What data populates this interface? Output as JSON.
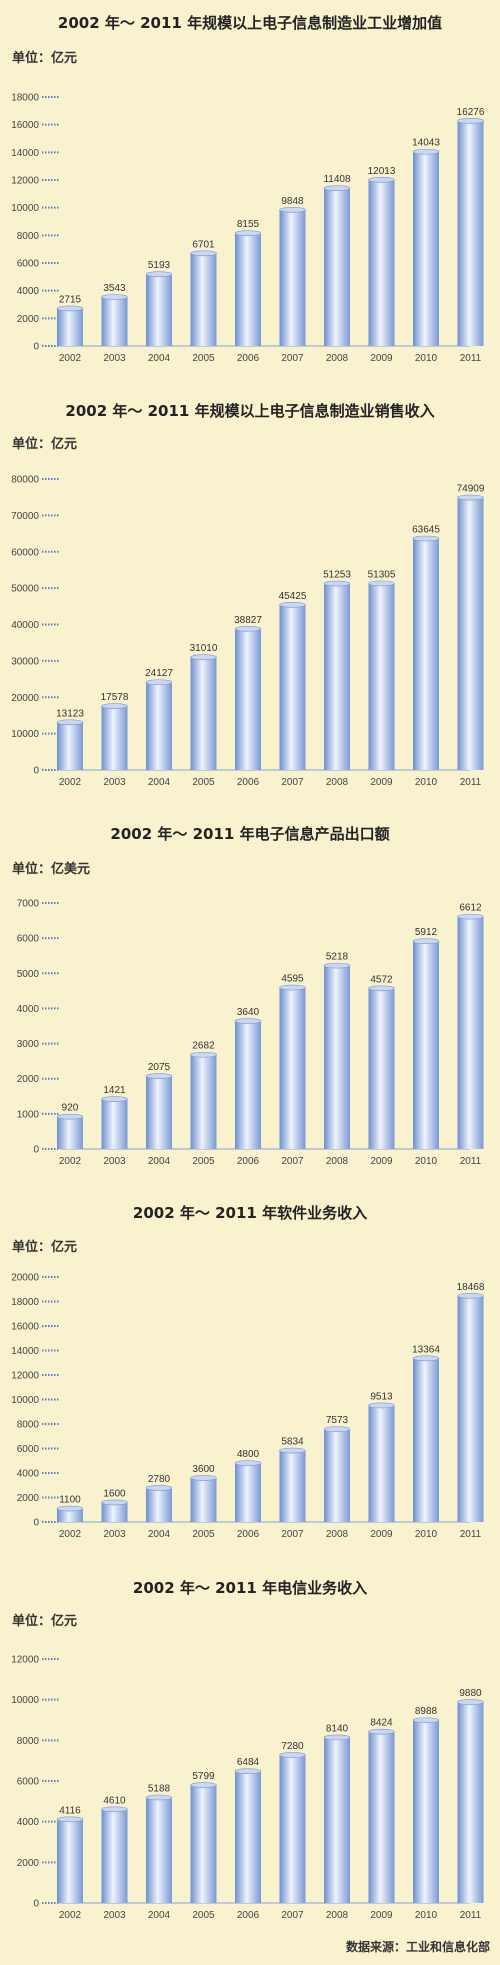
{
  "colors": {
    "background": "#f8f2cf",
    "bar_light": "#eef3fd",
    "bar_dark": "#6f8fcf",
    "dots": "#5a7fc4"
  },
  "source": "数据来源：工业和信息化部",
  "chart_data": [
    {
      "type": "bar",
      "title": "2002 年～ 2011 年规模以上电子信息制造业工业增加值",
      "unit": "单位：亿元",
      "categories": [
        "2002",
        "2003",
        "2004",
        "2005",
        "2006",
        "2007",
        "2008",
        "2009",
        "2010",
        "2011"
      ],
      "values": [
        2715,
        3543,
        5193,
        6701,
        8155,
        9848,
        11408,
        12013,
        14043,
        16276
      ],
      "value_labels": [
        "2715",
        "3543",
        "5193",
        "6701",
        "8155",
        "9848",
        "11408",
        "12013",
        "14043",
        "16276"
      ],
      "ylim": [
        0,
        18000
      ],
      "yticks": [
        0,
        2000,
        4000,
        6000,
        8000,
        10000,
        12000,
        14000,
        16000,
        18000
      ]
    },
    {
      "type": "bar",
      "title": "2002 年～ 2011 年规模以上电子信息制造业销售收入",
      "unit": "单位：亿元",
      "categories": [
        "2002",
        "2003",
        "2004",
        "2005",
        "2006",
        "2007",
        "2008",
        "2009",
        "2010",
        "2011"
      ],
      "values": [
        13123,
        17578,
        24127,
        31010,
        38827,
        45425,
        51253,
        51305,
        63645,
        74909
      ],
      "value_labels": [
        "13123",
        "17578",
        "24127",
        "31010",
        "38827",
        "45425",
        "51253",
        "51305",
        "63645",
        "74909"
      ],
      "ylim": [
        0,
        80000
      ],
      "yticks": [
        0,
        10000,
        20000,
        30000,
        40000,
        50000,
        60000,
        70000,
        80000
      ]
    },
    {
      "type": "bar",
      "title": "2002 年～ 2011 年电子信息产品出口额",
      "unit": "单位：亿美元",
      "categories": [
        "2002",
        "2003",
        "2004",
        "2005",
        "2006",
        "2007",
        "2008",
        "2009",
        "2010",
        "2011"
      ],
      "values": [
        920,
        1421,
        2075,
        2682,
        3640,
        4595,
        5218,
        4572,
        5912,
        6612
      ],
      "value_labels": [
        "920",
        "1421",
        "2075",
        "2682",
        "3640",
        "4595",
        "5218",
        "4572",
        "5912",
        "6612"
      ],
      "ylim": [
        0,
        7000
      ],
      "yticks": [
        0,
        1000,
        2000,
        3000,
        4000,
        5000,
        6000,
        7000
      ]
    },
    {
      "type": "bar",
      "title": "2002 年～ 2011 年软件业务收入",
      "unit": "单位：亿元",
      "categories": [
        "2002",
        "2003",
        "2004",
        "2005",
        "2006",
        "2007",
        "2008",
        "2009",
        "2010",
        "2011"
      ],
      "values": [
        1100,
        1600,
        2780,
        3600,
        4800,
        5834,
        7573,
        9513,
        13364,
        18468
      ],
      "value_labels": [
        "1100",
        "1600",
        "2780",
        "3600",
        "4800",
        "5834",
        "7573",
        "9513",
        "13364",
        "18468"
      ],
      "ylim": [
        0,
        20000
      ],
      "yticks": [
        0,
        2000,
        4000,
        6000,
        8000,
        10000,
        12000,
        14000,
        16000,
        18000,
        20000
      ]
    },
    {
      "type": "bar",
      "title": "2002 年～ 2011 年电信业务收入",
      "unit": "单位：亿元",
      "categories": [
        "2002",
        "2003",
        "2004",
        "2005",
        "2006",
        "2007",
        "2008",
        "2009",
        "2010",
        "2011"
      ],
      "values": [
        4116,
        4610,
        5188,
        5799,
        6484,
        7280,
        8140,
        8424,
        8988,
        9880
      ],
      "value_labels": [
        "4116",
        "4610",
        "5188",
        "5799",
        "6484",
        "7280",
        "8140",
        "8424",
        "8988",
        "9880"
      ],
      "ylim": [
        0,
        12000
      ],
      "yticks": [
        0,
        2000,
        4000,
        6000,
        8000,
        10000,
        12000
      ]
    }
  ]
}
